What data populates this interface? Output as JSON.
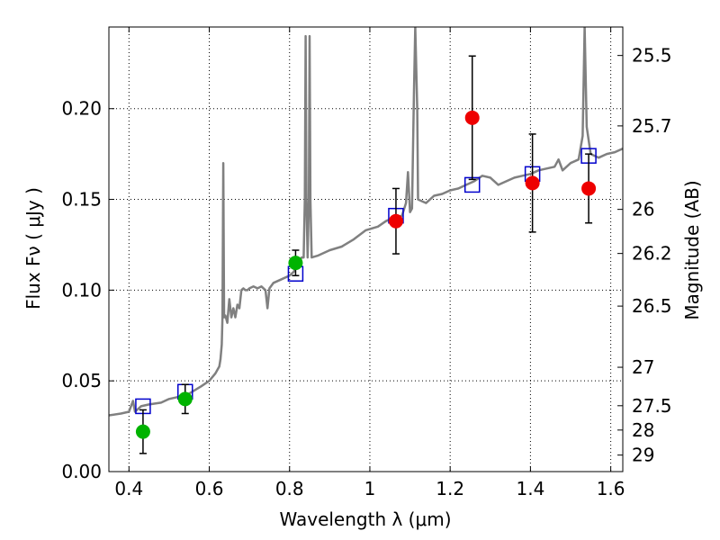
{
  "chart_data": {
    "type": "scatter",
    "xlabel": "Wavelength  λ (μm)",
    "ylabel": "Flux  Fν  ( μJy )",
    "ylabel_right": "Magnitude (AB)",
    "xlim": [
      0.35,
      1.63
    ],
    "ylim": [
      0.0,
      0.245
    ],
    "grid": true,
    "x_ticks": [
      0.4,
      0.6,
      0.8,
      1.0,
      1.2,
      1.4,
      1.6
    ],
    "x_tick_labels": [
      "0.4",
      "0.6",
      "0.8",
      "1",
      "1.2",
      "1.4",
      "1.6"
    ],
    "y_ticks": [
      0.0,
      0.05,
      0.1,
      0.15,
      0.2
    ],
    "y_tick_labels": [
      "0.00",
      "0.05",
      "0.10",
      "0.15",
      "0.20"
    ],
    "right_ticks": [
      {
        "flux": 0.2293,
        "label": "25.5"
      },
      {
        "flux": 0.1905,
        "label": "25.7"
      },
      {
        "flux": 0.1445,
        "label": "26"
      },
      {
        "flux": 0.1202,
        "label": "26.2"
      },
      {
        "flux": 0.0912,
        "label": "26.5"
      },
      {
        "flux": 0.0575,
        "label": "27"
      },
      {
        "flux": 0.0363,
        "label": "27.5"
      },
      {
        "flux": 0.0229,
        "label": "28"
      },
      {
        "flux": 0.0091,
        "label": "29"
      }
    ],
    "series": [
      {
        "kind": "line",
        "color": "#808080",
        "points": [
          [
            0.35,
            0.031
          ],
          [
            0.38,
            0.032
          ],
          [
            0.4,
            0.033
          ],
          [
            0.41,
            0.039
          ],
          [
            0.415,
            0.033
          ],
          [
            0.43,
            0.036
          ],
          [
            0.45,
            0.037
          ],
          [
            0.48,
            0.038
          ],
          [
            0.5,
            0.04
          ],
          [
            0.52,
            0.041
          ],
          [
            0.55,
            0.043
          ],
          [
            0.58,
            0.047
          ],
          [
            0.6,
            0.05
          ],
          [
            0.615,
            0.054
          ],
          [
            0.625,
            0.058
          ],
          [
            0.628,
            0.062
          ],
          [
            0.631,
            0.07
          ],
          [
            0.633,
            0.085
          ],
          [
            0.635,
            0.17
          ],
          [
            0.637,
            0.085
          ],
          [
            0.64,
            0.086
          ],
          [
            0.645,
            0.082
          ],
          [
            0.65,
            0.095
          ],
          [
            0.655,
            0.085
          ],
          [
            0.66,
            0.09
          ],
          [
            0.665,
            0.085
          ],
          [
            0.67,
            0.092
          ],
          [
            0.675,
            0.09
          ],
          [
            0.68,
            0.1
          ],
          [
            0.685,
            0.101
          ],
          [
            0.69,
            0.1
          ],
          [
            0.695,
            0.1
          ],
          [
            0.7,
            0.101
          ],
          [
            0.71,
            0.102
          ],
          [
            0.72,
            0.101
          ],
          [
            0.73,
            0.102
          ],
          [
            0.74,
            0.1
          ],
          [
            0.745,
            0.09
          ],
          [
            0.75,
            0.101
          ],
          [
            0.76,
            0.104
          ],
          [
            0.78,
            0.106
          ],
          [
            0.8,
            0.108
          ],
          [
            0.81,
            0.11
          ],
          [
            0.82,
            0.114
          ],
          [
            0.83,
            0.118
          ],
          [
            0.835,
            0.118
          ],
          [
            0.838,
            0.15
          ],
          [
            0.84,
            0.24
          ],
          [
            0.842,
            0.15
          ],
          [
            0.845,
            0.118
          ],
          [
            0.848,
            0.15
          ],
          [
            0.85,
            0.24
          ],
          [
            0.852,
            0.15
          ],
          [
            0.855,
            0.118
          ],
          [
            0.87,
            0.119
          ],
          [
            0.9,
            0.122
          ],
          [
            0.93,
            0.124
          ],
          [
            0.96,
            0.128
          ],
          [
            0.99,
            0.133
          ],
          [
            1.02,
            0.135
          ],
          [
            1.04,
            0.138
          ],
          [
            1.06,
            0.14
          ],
          [
            1.08,
            0.141
          ],
          [
            1.09,
            0.148
          ],
          [
            1.095,
            0.165
          ],
          [
            1.1,
            0.143
          ],
          [
            1.105,
            0.145
          ],
          [
            1.11,
            0.21
          ],
          [
            1.113,
            0.245
          ],
          [
            1.118,
            0.2
          ],
          [
            1.12,
            0.15
          ],
          [
            1.14,
            0.148
          ],
          [
            1.16,
            0.152
          ],
          [
            1.18,
            0.153
          ],
          [
            1.2,
            0.155
          ],
          [
            1.22,
            0.156
          ],
          [
            1.24,
            0.158
          ],
          [
            1.26,
            0.16
          ],
          [
            1.28,
            0.163
          ],
          [
            1.3,
            0.162
          ],
          [
            1.32,
            0.158
          ],
          [
            1.34,
            0.16
          ],
          [
            1.36,
            0.162
          ],
          [
            1.38,
            0.163
          ],
          [
            1.4,
            0.164
          ],
          [
            1.42,
            0.166
          ],
          [
            1.44,
            0.167
          ],
          [
            1.46,
            0.168
          ],
          [
            1.47,
            0.172
          ],
          [
            1.48,
            0.166
          ],
          [
            1.5,
            0.17
          ],
          [
            1.52,
            0.172
          ],
          [
            1.53,
            0.185
          ],
          [
            1.535,
            0.245
          ],
          [
            1.54,
            0.19
          ],
          [
            1.55,
            0.175
          ],
          [
            1.57,
            0.173
          ],
          [
            1.59,
            0.175
          ],
          [
            1.61,
            0.176
          ],
          [
            1.63,
            0.178
          ]
        ]
      },
      {
        "kind": "open-square",
        "color": "#0000cc",
        "points": [
          [
            0.435,
            0.036
          ],
          [
            0.54,
            0.044
          ],
          [
            0.815,
            0.109
          ],
          [
            1.065,
            0.141
          ],
          [
            1.255,
            0.158
          ],
          [
            1.405,
            0.164
          ],
          [
            1.545,
            0.174
          ]
        ]
      },
      {
        "kind": "point-errorbar",
        "color": "#00b300",
        "points": [
          {
            "x": 0.435,
            "y": 0.022,
            "err": 0.012
          },
          {
            "x": 0.54,
            "y": 0.04,
            "err": 0.008
          },
          {
            "x": 0.815,
            "y": 0.115,
            "err": 0.007
          }
        ]
      },
      {
        "kind": "point-errorbar",
        "color": "#ee0000",
        "points": [
          {
            "x": 1.065,
            "y": 0.138,
            "err": 0.018
          },
          {
            "x": 1.255,
            "y": 0.195,
            "err": 0.034
          },
          {
            "x": 1.405,
            "y": 0.159,
            "err": 0.027
          },
          {
            "x": 1.545,
            "y": 0.156,
            "err": 0.019
          }
        ]
      }
    ]
  }
}
